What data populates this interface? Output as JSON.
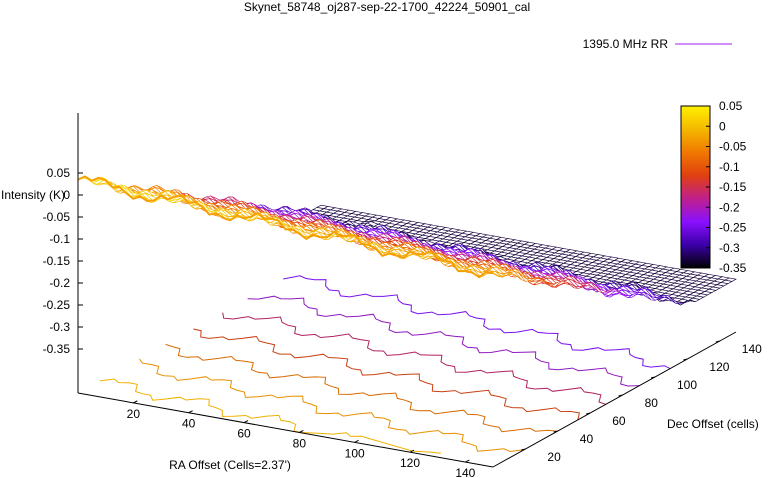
{
  "chart_data": {
    "type": "surface3d",
    "title": "Skynet_58748_oj287-sep-22-1700_42224_50901_cal",
    "xlabel": "RA Offset (Cells=2.37')",
    "ylabel": "Dec Offset (cells)",
    "zlabel": "Intensity (K)",
    "legend": {
      "label": "1395.0 MHz RR",
      "color": "#a020f0",
      "placement": "top-right"
    },
    "x_ticks": [
      "20",
      "40",
      "60",
      "80",
      "100",
      "120",
      "140"
    ],
    "y_ticks": [
      "20",
      "40",
      "60",
      "80",
      "100",
      "120",
      "140"
    ],
    "z_ticks": [
      "0.05",
      "0",
      "-0.05",
      "-0.1",
      "-0.15",
      "-0.2",
      "-0.25",
      "-0.3",
      "-0.35"
    ],
    "colorbar": {
      "range": [
        -0.35,
        0.05
      ],
      "ticks": [
        "0.05",
        "0",
        "-0.05",
        "-0.1",
        "-0.15",
        "-0.2",
        "-0.25",
        "-0.3",
        "-0.35"
      ],
      "palette": [
        "#000000",
        "#3a00a8",
        "#8a10ff",
        "#c0208a",
        "#e04010",
        "#f07800",
        "#f5b800",
        "#fff000"
      ]
    },
    "contours": [
      {
        "level": 0.0,
        "color": "#f0b000"
      },
      {
        "level": -0.05,
        "color": "#e89000"
      },
      {
        "level": -0.1,
        "color": "#d86a00"
      },
      {
        "level": -0.15,
        "color": "#c84010"
      },
      {
        "level": -0.2,
        "color": "#b02060"
      },
      {
        "level": -0.25,
        "color": "#9018c0"
      },
      {
        "level": -0.3,
        "color": "#7a10f0"
      }
    ],
    "grid": false
  }
}
